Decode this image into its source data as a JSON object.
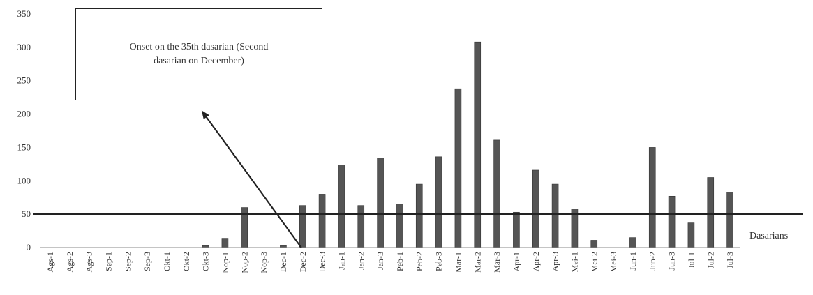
{
  "chart_data": {
    "type": "bar",
    "xlabel": "Dasarians",
    "ylabel": "",
    "ylim": [
      0,
      350
    ],
    "yticks": [
      0,
      50,
      100,
      150,
      200,
      250,
      300,
      350
    ],
    "categories": [
      "Ags-1",
      "Ags-2",
      "Ags-3",
      "Sep-1",
      "Sep-2",
      "Sep-3",
      "Okt-1",
      "Okt-2",
      "Okt-3",
      "Nop-1",
      "Nop-2",
      "Nop-3",
      "Dec-1",
      "Dec-2",
      "Dec-3",
      "Jan-1",
      "Jan-2",
      "Jan-3",
      "Peb-1",
      "Peb-2",
      "Peb-3",
      "Mar-1",
      "Mar-2",
      "Mar-3",
      "Apr-1",
      "Apr-2",
      "Apr-3",
      "Mei-1",
      "Mei-2",
      "Mei-3",
      "Jun-1",
      "Jun-2",
      "Jun-3",
      "Jul-1",
      "Jul-2",
      "Jul-3"
    ],
    "values": [
      0,
      0,
      0,
      0,
      0,
      0,
      0,
      0,
      3,
      14,
      60,
      0,
      3,
      63,
      80,
      124,
      63,
      134,
      65,
      95,
      136,
      238,
      308,
      161,
      53,
      116,
      95,
      58,
      11,
      0,
      15,
      150,
      77,
      37,
      105,
      83
    ],
    "threshold": 50,
    "grid": false,
    "bar_color": "#555555",
    "annotation": {
      "text": "Onset on the 35th dasarian (Second dasarian on December)",
      "points_to": "Dec-2"
    }
  }
}
